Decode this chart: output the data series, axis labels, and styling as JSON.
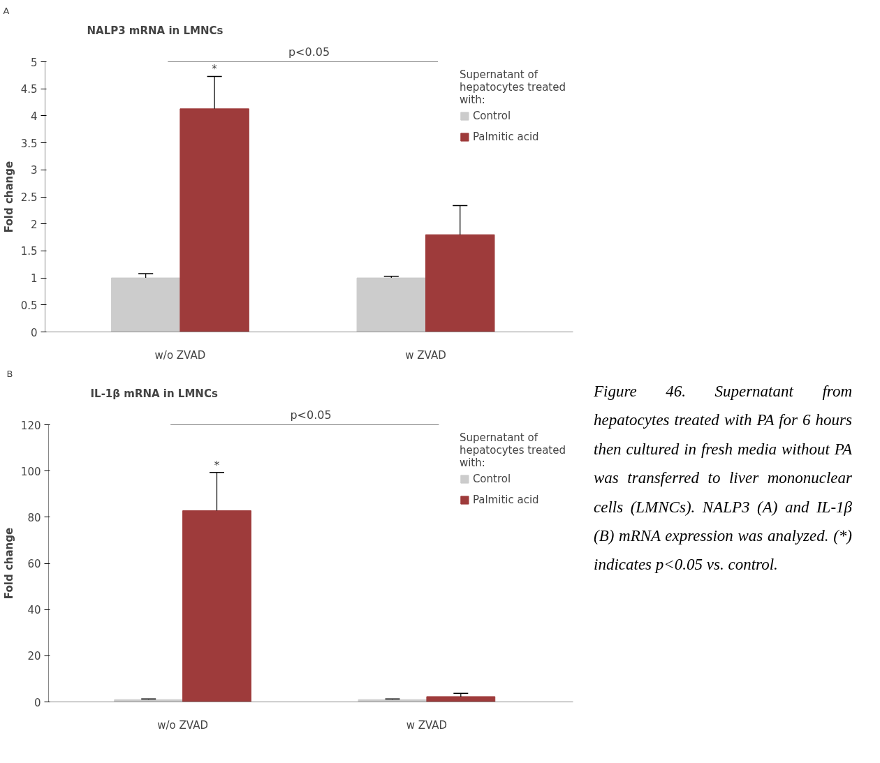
{
  "chart_data": [
    {
      "type": "bar",
      "title": "NALP3 mRNA in LMNCs",
      "ylabel": "Fold change",
      "legend_title": "Supernatant of hepatocytes treated with:",
      "categories": [
        "w/o ZVAD",
        "w ZVAD"
      ],
      "series": [
        {
          "name": "Control",
          "color": "#cccccc",
          "values": [
            1.0,
            1.0
          ],
          "errors": [
            0.08,
            0.03
          ]
        },
        {
          "name": "Palmitic acid",
          "color": "#9e3b3b",
          "values": [
            4.13,
            1.8
          ],
          "errors": [
            0.6,
            0.54
          ]
        }
      ],
      "ylim": [
        0,
        5
      ],
      "yticks": [
        0,
        0.5,
        1,
        1.5,
        2,
        2.5,
        3,
        3.5,
        4,
        4.5,
        5
      ],
      "grid": false,
      "legend": "right",
      "annotations": [
        "A",
        "p<0.05",
        "*"
      ]
    },
    {
      "type": "bar",
      "title": "IL-1β mRNA in LMNCs",
      "ylabel": "Fold change",
      "legend_title": "Supernatant of hepatocytes treated with:",
      "categories": [
        "w/o ZVAD",
        "w ZVAD"
      ],
      "series": [
        {
          "name": "Control",
          "color": "#cccccc",
          "values": [
            1,
            1
          ],
          "errors": [
            0.3,
            0.3
          ]
        },
        {
          "name": "Palmitic acid",
          "color": "#9e3b3b",
          "values": [
            82.8,
            2.3
          ],
          "errors": [
            16.6,
            1.4
          ]
        }
      ],
      "ylim": [
        0,
        120
      ],
      "yticks": [
        0,
        20,
        40,
        60,
        80,
        100,
        120
      ],
      "grid": false,
      "legend": "right",
      "annotations": [
        "B",
        "p<0.05",
        "*",
        "Figure 46. Supernatant from hepatocytes treated with PA for 6 hours then cultured in fresh media without PA was transferred to liver mononuclear cells (LMNCs). NALP3 (A) and IL-1β (B) mRNA expression was analyzed. (*) indicates p<0.05 vs. control."
      ]
    }
  ]
}
